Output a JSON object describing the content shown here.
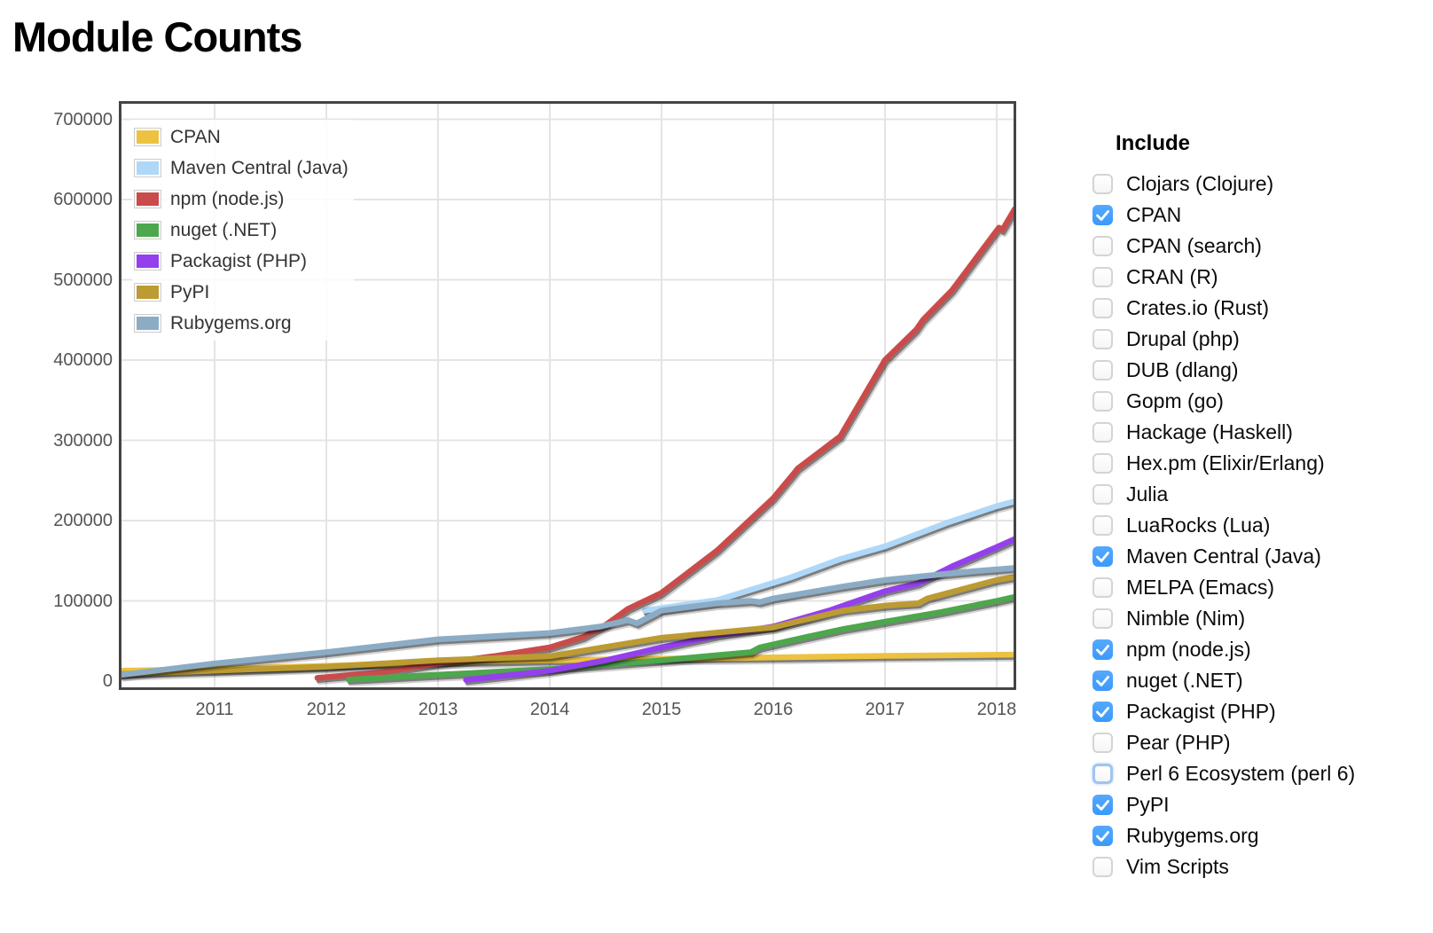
{
  "page": {
    "title": "Module Counts"
  },
  "include_panel": {
    "header": "Include",
    "items": [
      {
        "label": "Clojars (Clojure)",
        "checked": false
      },
      {
        "label": "CPAN",
        "checked": true
      },
      {
        "label": "CPAN (search)",
        "checked": false
      },
      {
        "label": "CRAN (R)",
        "checked": false
      },
      {
        "label": "Crates.io (Rust)",
        "checked": false
      },
      {
        "label": "Drupal (php)",
        "checked": false
      },
      {
        "label": "DUB (dlang)",
        "checked": false
      },
      {
        "label": "Gopm (go)",
        "checked": false
      },
      {
        "label": "Hackage (Haskell)",
        "checked": false
      },
      {
        "label": "Hex.pm (Elixir/Erlang)",
        "checked": false
      },
      {
        "label": "Julia",
        "checked": false
      },
      {
        "label": "LuaRocks (Lua)",
        "checked": false
      },
      {
        "label": "Maven Central (Java)",
        "checked": true
      },
      {
        "label": "MELPA (Emacs)",
        "checked": false
      },
      {
        "label": "Nimble (Nim)",
        "checked": false
      },
      {
        "label": "npm (node.js)",
        "checked": true
      },
      {
        "label": "nuget (.NET)",
        "checked": true
      },
      {
        "label": "Packagist (PHP)",
        "checked": true
      },
      {
        "label": "Pear (PHP)",
        "checked": false
      },
      {
        "label": "Perl 6 Ecosystem (perl 6)",
        "checked": false,
        "focused": true
      },
      {
        "label": "PyPI",
        "checked": true
      },
      {
        "label": "Rubygems.org",
        "checked": true
      },
      {
        "label": "Vim Scripts",
        "checked": false
      }
    ]
  },
  "checkbox_style": {
    "checked_color": "#3b99fc",
    "focus_border": "#9ec5ee"
  },
  "chart_data": {
    "type": "line",
    "title": "Module Counts",
    "xlabel": "",
    "ylabel": "",
    "x_ticks": [
      2011,
      2012,
      2013,
      2014,
      2015,
      2016,
      2017,
      2018
    ],
    "y_ticks": [
      0,
      100000,
      200000,
      300000,
      400000,
      500000,
      600000,
      700000
    ],
    "xlim": [
      2010.17,
      2018.16
    ],
    "ylim": [
      0,
      719000
    ],
    "grid": true,
    "legend_position": "top-left",
    "series": [
      {
        "name": "CPAN",
        "color": "#edc240",
        "points": [
          [
            2010.17,
            13000
          ],
          [
            2011,
            15000
          ],
          [
            2012,
            19000
          ],
          [
            2013,
            23500
          ],
          [
            2014,
            26000
          ],
          [
            2015,
            28000
          ],
          [
            2016,
            29500
          ],
          [
            2017,
            31500
          ],
          [
            2018.16,
            33000
          ]
        ]
      },
      {
        "name": "Maven Central (Java)",
        "color": "#afd8f8",
        "points": [
          [
            2014.85,
            88000
          ],
          [
            2015,
            91000
          ],
          [
            2015.5,
            101000
          ],
          [
            2016.15,
            129000
          ],
          [
            2016.6,
            152000
          ],
          [
            2017,
            168000
          ],
          [
            2017.55,
            197000
          ],
          [
            2018,
            218000
          ],
          [
            2018.16,
            224000
          ]
        ]
      },
      {
        "name": "npm (node.js)",
        "color": "#cb4b4b",
        "points": [
          [
            2011.92,
            4000
          ],
          [
            2012.5,
            11000
          ],
          [
            2013,
            22000
          ],
          [
            2013.5,
            31000
          ],
          [
            2014,
            42000
          ],
          [
            2014.3,
            55000
          ],
          [
            2014.5,
            70000
          ],
          [
            2014.7,
            90000
          ],
          [
            2015,
            110000
          ],
          [
            2015.5,
            163000
          ],
          [
            2016,
            228000
          ],
          [
            2016.18,
            258000
          ],
          [
            2016.22,
            265000
          ],
          [
            2016.6,
            305000
          ],
          [
            2017,
            400000
          ],
          [
            2017.28,
            438000
          ],
          [
            2017.34,
            450000
          ],
          [
            2017.6,
            487000
          ],
          [
            2017.95,
            552000
          ],
          [
            2018.02,
            565000
          ],
          [
            2018.05,
            562000
          ],
          [
            2018.16,
            588000
          ]
        ]
      },
      {
        "name": "nuget (.NET)",
        "color": "#4da74d",
        "points": [
          [
            2012.2,
            2000
          ],
          [
            2013,
            8000
          ],
          [
            2014,
            15000
          ],
          [
            2015,
            26000
          ],
          [
            2015.8,
            36000
          ],
          [
            2015.88,
            42000
          ],
          [
            2016.3,
            55000
          ],
          [
            2016.63,
            65000
          ],
          [
            2017,
            74000
          ],
          [
            2017.5,
            86000
          ],
          [
            2018,
            100000
          ],
          [
            2018.16,
            105000
          ]
        ]
      },
      {
        "name": "Packagist (PHP)",
        "color": "#9440ed",
        "points": [
          [
            2013.25,
            1500
          ],
          [
            2014,
            13000
          ],
          [
            2014.5,
            26000
          ],
          [
            2015,
            42000
          ],
          [
            2015.5,
            57000
          ],
          [
            2016,
            68000
          ],
          [
            2016.5,
            88000
          ],
          [
            2017,
            112000
          ],
          [
            2017.3,
            122000
          ],
          [
            2017.6,
            143000
          ],
          [
            2018,
            167000
          ],
          [
            2018.16,
            177000
          ]
        ]
      },
      {
        "name": "PyPI",
        "color": "#bd9b33",
        "points": [
          [
            2010.17,
            9000
          ],
          [
            2011,
            13000
          ],
          [
            2012,
            18000
          ],
          [
            2013,
            26000
          ],
          [
            2014,
            31000
          ],
          [
            2015,
            54000
          ],
          [
            2016,
            67000
          ],
          [
            2016.63,
            88000
          ],
          [
            2017,
            94000
          ],
          [
            2017.3,
            97000
          ],
          [
            2017.38,
            103000
          ],
          [
            2018,
            126000
          ],
          [
            2018.16,
            130000
          ]
        ]
      },
      {
        "name": "Rubygems.org",
        "color": "#8cacc6",
        "points": [
          [
            2010.17,
            8000
          ],
          [
            2011,
            22000
          ],
          [
            2012,
            36000
          ],
          [
            2013,
            52000
          ],
          [
            2014,
            60000
          ],
          [
            2014.45,
            68000
          ],
          [
            2014.7,
            76000
          ],
          [
            2014.78,
            72000
          ],
          [
            2015,
            88000
          ],
          [
            2015.5,
            97000
          ],
          [
            2015.8,
            100000
          ],
          [
            2015.88,
            98500
          ],
          [
            2016,
            103000
          ],
          [
            2016.63,
            118000
          ],
          [
            2017,
            126000
          ],
          [
            2017.5,
            133000
          ],
          [
            2017.8,
            137000
          ],
          [
            2018.16,
            141000
          ]
        ]
      }
    ]
  }
}
